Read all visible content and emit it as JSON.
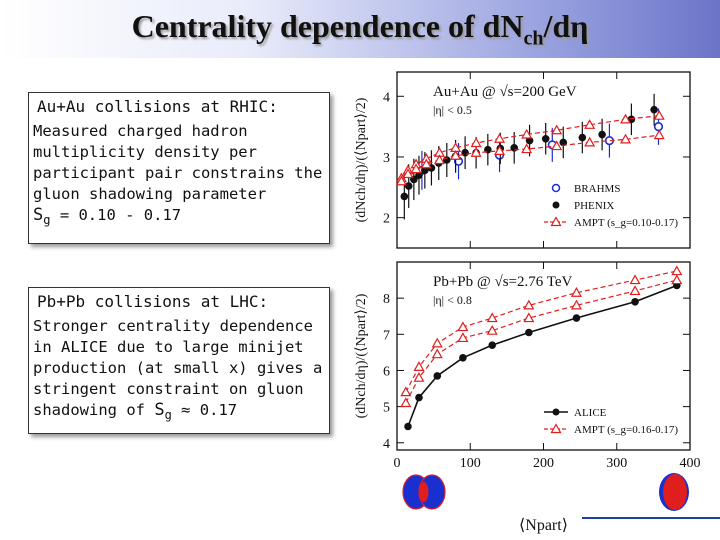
{
  "slide": {
    "title_main": "Centrality dependence of dN",
    "title_sub": "ch",
    "title_end": "/dη"
  },
  "rhic_box": {
    "heading": "Au+Au collisions at RHIC:",
    "lines": [
      "Measured charged hadron",
      "multiplicity density per",
      "participant pair constrains  the",
      "gluon shadowing parameter"
    ],
    "sg_symbol": "S",
    "sg_sub": "g",
    "sg_value": " = 0.10 - 0.17"
  },
  "lhc_box": {
    "heading": "Pb+Pb collisions at LHC:",
    "lines": [
      "Stronger centrality dependence",
      "in ALICE due to large minijet",
      "production (at small x) gives a",
      "stringent constraint on gluon"
    ],
    "last_prefix": "shadowing of ",
    "sg_symbol": "S",
    "sg_sub": "g",
    "sg_value": " ≈ 0.17"
  },
  "chart_data": [
    {
      "type": "scatter",
      "title": "Au+Au @ √s=200 GeV",
      "subtitle": "|η| < 0.5",
      "xlabel": "⟨Npart⟩",
      "ylabel": "(dNch/dη)/(⟨Npart⟩/2)",
      "xlim": [
        0,
        400
      ],
      "ylim": [
        1.5,
        4.4
      ],
      "yticks": [
        2,
        3,
        4
      ],
      "legend_position": "bottom-right",
      "series": [
        {
          "name": "BRAHMS",
          "marker": "open-circle",
          "color": "#1a2fd0",
          "x": [
            34,
            84,
            140,
            212,
            290,
            357
          ],
          "y": [
            2.78,
            2.93,
            3.03,
            3.2,
            3.27,
            3.5
          ],
          "err": [
            0.32,
            0.3,
            0.28,
            0.28,
            0.28,
            0.3
          ]
        },
        {
          "name": "PHENIX",
          "marker": "filled-circle",
          "color": "#111111",
          "x": [
            10,
            16,
            23,
            30,
            38,
            47,
            57,
            68,
            80,
            93,
            108,
            124,
            141,
            160,
            181,
            203,
            227,
            253,
            280,
            320,
            351
          ],
          "y": [
            2.35,
            2.52,
            2.63,
            2.7,
            2.78,
            2.82,
            2.9,
            2.95,
            3.01,
            3.07,
            3.07,
            3.12,
            3.14,
            3.15,
            3.27,
            3.3,
            3.24,
            3.32,
            3.37,
            3.62,
            3.78
          ],
          "err": [
            0.38,
            0.36,
            0.34,
            0.32,
            0.3,
            0.29,
            0.28,
            0.28,
            0.27,
            0.27,
            0.26,
            0.26,
            0.26,
            0.26,
            0.26,
            0.26,
            0.26,
            0.26,
            0.26,
            0.26,
            0.26
          ]
        },
        {
          "name": "AMPT (s_g=0.10-0.17)",
          "marker": "open-triangle",
          "color": "#e01e1e",
          "line": "dashed",
          "band": [
            {
              "x": [
                6,
                15,
                26,
                40,
                58,
                80,
                108,
                140,
                177,
                218,
                263,
                312,
                358
              ],
              "y": [
                2.65,
                2.78,
                2.88,
                2.97,
                3.07,
                3.15,
                3.23,
                3.3,
                3.37,
                3.44,
                3.53,
                3.62,
                3.68
              ]
            },
            {
              "x": [
                6,
                15,
                26,
                40,
                58,
                80,
                108,
                140,
                177,
                218,
                263,
                312,
                358
              ],
              "y": [
                2.6,
                2.72,
                2.8,
                2.88,
                2.95,
                3.02,
                3.07,
                3.1,
                3.13,
                3.18,
                3.24,
                3.29,
                3.36
              ]
            }
          ]
        }
      ]
    },
    {
      "type": "line",
      "title": "Pb+Pb @ √s=2.76 TeV",
      "subtitle": "|η| < 0.8",
      "xlabel": "⟨Npart⟩",
      "ylabel": "(dNch/dη)/(⟨Npart⟩/2)",
      "xlim": [
        0,
        400
      ],
      "ylim": [
        3.8,
        9.0
      ],
      "xticks": [
        0,
        100,
        200,
        300,
        400
      ],
      "yticks": [
        4,
        5,
        6,
        7,
        8
      ],
      "legend_position": "bottom-right",
      "series": [
        {
          "name": "ALICE",
          "marker": "filled-circle",
          "color": "#111111",
          "line": "solid",
          "x": [
            15,
            30,
            55,
            90,
            130,
            180,
            245,
            325,
            382
          ],
          "y": [
            4.45,
            5.25,
            5.85,
            6.35,
            6.7,
            7.05,
            7.45,
            7.9,
            8.35
          ]
        },
        {
          "name": "AMPT (s_g=0.16-0.17)",
          "marker": "open-triangle",
          "color": "#e01e1e",
          "line": "dashed",
          "band": [
            {
              "x": [
                12,
                30,
                55,
                90,
                130,
                180,
                245,
                325,
                382
              ],
              "y": [
                5.4,
                6.1,
                6.75,
                7.2,
                7.45,
                7.8,
                8.15,
                8.5,
                8.75
              ]
            },
            {
              "x": [
                12,
                30,
                55,
                90,
                130,
                180,
                245,
                325,
                382
              ],
              "y": [
                5.1,
                5.8,
                6.45,
                6.9,
                7.1,
                7.45,
                7.8,
                8.2,
                8.5
              ]
            }
          ]
        }
      ]
    }
  ]
}
